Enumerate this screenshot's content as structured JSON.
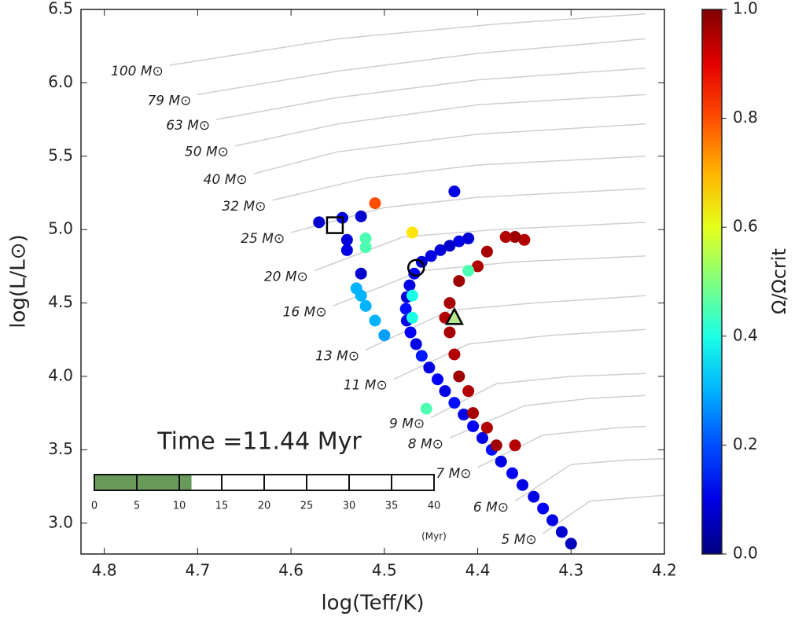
{
  "chart_data": {
    "type": "scatter",
    "xlabel": "log(Teff/K)",
    "ylabel": "log(L/L⊙)",
    "xlim": [
      4.825,
      4.2
    ],
    "ylim": [
      2.79,
      6.5
    ],
    "xticks": [
      4.8,
      4.7,
      4.6,
      4.5,
      4.4,
      4.3,
      4.2
    ],
    "yticks": [
      {
        "value": 3,
        "label": "3.0"
      },
      3.5,
      {
        "value": 4,
        "label": "4.0"
      },
      4.5,
      {
        "value": 5,
        "label": "5.0"
      },
      5.5,
      {
        "value": 6,
        "label": "6.0"
      },
      6.5
    ],
    "annotation": "Time =11.44 Myr",
    "time_bar": {
      "value": 11.44,
      "lim": [
        0,
        40
      ],
      "ticks": [
        0,
        5,
        10,
        15,
        20,
        25,
        30,
        35,
        40
      ],
      "unit_label": "(Myr)",
      "color": "#6a9a5a"
    },
    "colorbar": {
      "label": "Ω/Ωcrit",
      "lim": [
        0,
        1
      ],
      "ticks": [
        {
          "value": 0,
          "label": "0.0"
        },
        0.2,
        0.4,
        0.6,
        0.8,
        {
          "value": 1,
          "label": "1.0"
        }
      ]
    },
    "tracks": [
      {
        "name": "100 M⊙",
        "x": [
          4.73,
          4.55,
          4.38,
          4.22
        ],
        "y": [
          6.12,
          6.3,
          6.4,
          6.47
        ]
      },
      {
        "name": "79 M⊙",
        "x": [
          4.7,
          4.55,
          4.4,
          4.22
        ],
        "y": [
          5.92,
          6.08,
          6.2,
          6.3
        ]
      },
      {
        "name": "63 M⊙",
        "x": [
          4.68,
          4.55,
          4.4,
          4.22
        ],
        "y": [
          5.75,
          5.9,
          6.02,
          6.1
        ]
      },
      {
        "name": "50 M⊙",
        "x": [
          4.66,
          4.55,
          4.4,
          4.22
        ],
        "y": [
          5.57,
          5.72,
          5.85,
          5.92
        ]
      },
      {
        "name": "40 M⊙",
        "x": [
          4.64,
          4.55,
          4.4,
          4.22
        ],
        "y": [
          5.38,
          5.53,
          5.65,
          5.72
        ]
      },
      {
        "name": "32 M⊙",
        "x": [
          4.62,
          4.52,
          4.4,
          4.22
        ],
        "y": [
          5.2,
          5.35,
          5.44,
          5.5
        ]
      },
      {
        "name": "25 M⊙",
        "x": [
          4.6,
          4.5,
          4.4,
          4.22
        ],
        "y": [
          4.98,
          5.15,
          5.22,
          5.28
        ]
      },
      {
        "name": "20 M⊙",
        "x": [
          4.575,
          4.48,
          4.38,
          4.22
        ],
        "y": [
          4.72,
          4.95,
          5.0,
          5.05
        ]
      },
      {
        "name": "16 M⊙",
        "x": [
          4.555,
          4.46,
          4.36,
          4.22
        ],
        "y": [
          4.48,
          4.72,
          4.78,
          4.82
        ]
      },
      {
        "name": "13 M⊙",
        "x": [
          4.52,
          4.43,
          4.34,
          4.22
        ],
        "y": [
          4.18,
          4.45,
          4.5,
          4.55
        ]
      },
      {
        "name": "11 M⊙",
        "x": [
          4.49,
          4.41,
          4.32,
          4.22
        ],
        "y": [
          3.98,
          4.22,
          4.28,
          4.32
        ]
      },
      {
        "name": "9 M⊙",
        "x": [
          4.45,
          4.38,
          4.3,
          4.22
        ],
        "y": [
          3.72,
          3.95,
          4.0,
          4.02
        ]
      },
      {
        "name": "8 M⊙",
        "x": [
          4.43,
          4.35,
          4.28,
          4.22
        ],
        "y": [
          3.58,
          3.8,
          3.85,
          3.87
        ]
      },
      {
        "name": "7 M⊙",
        "x": [
          4.4,
          4.33,
          4.25,
          4.22
        ],
        "y": [
          3.38,
          3.6,
          3.65,
          3.66
        ]
      },
      {
        "name": "6 M⊙",
        "x": [
          4.36,
          4.3,
          4.24,
          4.2
        ],
        "y": [
          3.15,
          3.4,
          3.43,
          3.44
        ]
      },
      {
        "name": "5 M⊙",
        "x": [
          4.33,
          4.28,
          4.22,
          4.2
        ],
        "y": [
          2.93,
          3.15,
          3.18,
          3.19
        ]
      }
    ],
    "points": {
      "x": [
        4.41,
        4.42,
        4.43,
        4.44,
        4.45,
        4.46,
        4.468,
        4.473,
        4.476,
        4.477,
        4.476,
        4.472,
        4.466,
        4.46,
        4.452,
        4.443,
        4.435,
        4.425,
        4.415,
        4.405,
        4.395,
        4.385,
        4.375,
        4.363,
        4.352,
        4.34,
        4.33,
        4.32,
        4.31,
        4.3,
        4.35,
        4.36,
        4.37,
        4.39,
        4.4,
        4.42,
        4.43,
        4.435,
        4.43,
        4.425,
        4.42,
        4.41,
        4.405,
        4.39,
        4.38,
        4.36,
        4.57,
        4.545,
        4.525,
        4.54,
        4.54,
        4.525,
        4.425,
        4.51,
        4.47,
        4.52,
        4.52,
        4.53,
        4.525,
        4.52,
        4.51,
        4.5,
        4.455,
        4.41,
        4.47,
        4.47
      ],
      "y": [
        4.94,
        4.92,
        4.89,
        4.86,
        4.82,
        4.78,
        4.7,
        4.62,
        4.54,
        4.46,
        4.38,
        4.3,
        4.22,
        4.14,
        4.06,
        3.98,
        3.9,
        3.82,
        3.74,
        3.66,
        3.58,
        3.5,
        3.42,
        3.34,
        3.26,
        3.18,
        3.1,
        3.02,
        2.94,
        2.86,
        4.93,
        4.95,
        4.95,
        4.85,
        4.75,
        4.65,
        4.5,
        4.4,
        4.3,
        4.15,
        4.0,
        3.9,
        3.75,
        3.65,
        3.53,
        3.53,
        5.05,
        5.08,
        5.09,
        4.93,
        4.86,
        4.7,
        5.26,
        5.18,
        4.98,
        4.94,
        4.88,
        4.6,
        4.55,
        4.48,
        4.38,
        4.28,
        3.78,
        4.72,
        4.55,
        4.4
      ],
      "c": [
        0.08,
        0.1,
        0.07,
        0.09,
        0.1,
        0.08,
        0.12,
        0.1,
        0.09,
        0.14,
        0.1,
        0.12,
        0.1,
        0.15,
        0.1,
        0.12,
        0.1,
        0.14,
        0.1,
        0.12,
        0.1,
        0.14,
        0.1,
        0.12,
        0.1,
        0.1,
        0.12,
        0.1,
        0.08,
        0.06,
        0.95,
        0.97,
        0.95,
        0.96,
        0.95,
        0.97,
        0.96,
        0.95,
        0.96,
        0.95,
        0.97,
        0.95,
        0.96,
        0.95,
        0.97,
        0.95,
        0.08,
        0.1,
        0.08,
        0.09,
        0.1,
        0.08,
        0.1,
        0.8,
        0.65,
        0.45,
        0.45,
        0.3,
        0.3,
        0.3,
        0.3,
        0.28,
        0.45,
        0.45,
        0.4,
        0.4
      ]
    },
    "markers": [
      {
        "shape": "square",
        "x": 4.553,
        "y": 5.03
      },
      {
        "shape": "circle",
        "x": 4.466,
        "y": 4.74
      },
      {
        "shape": "triangle",
        "x": 4.425,
        "y": 4.4
      }
    ]
  }
}
